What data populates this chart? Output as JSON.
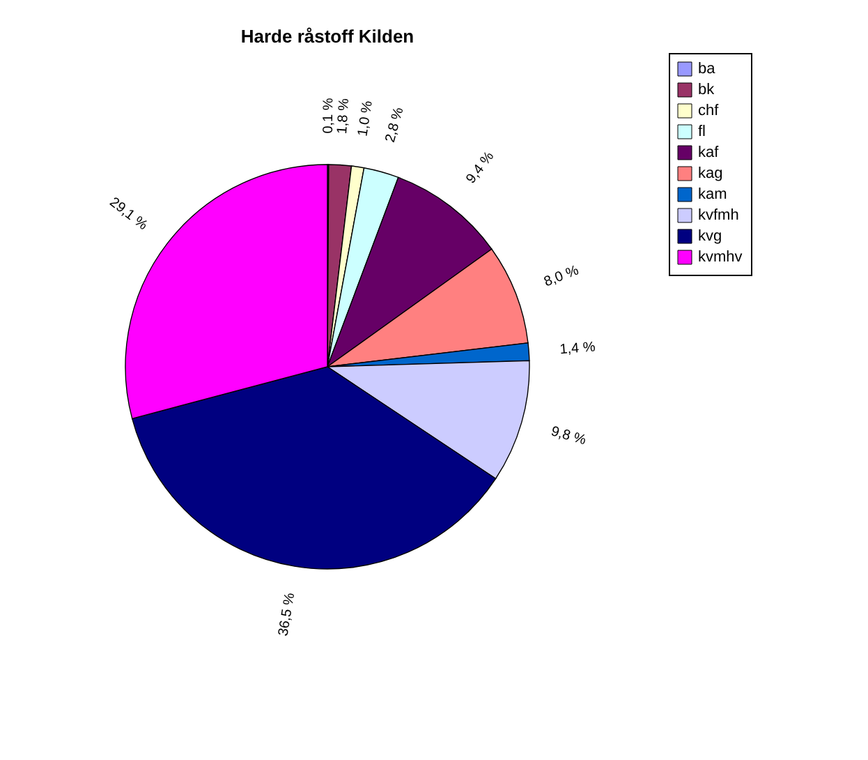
{
  "chart_data": {
    "type": "pie",
    "title": "Harde råstoff Kilden",
    "categories": [
      "ba",
      "bk",
      "chf",
      "fl",
      "kaf",
      "kag",
      "kam",
      "kvfmh",
      "kvg",
      "kvmhv"
    ],
    "values": [
      0.1,
      1.8,
      1.0,
      2.8,
      9.4,
      8.0,
      1.4,
      9.8,
      36.5,
      29.1
    ],
    "value_labels": [
      "0,1 %",
      "1,8 %",
      "1,0 %",
      "2,8 %",
      "9,4 %",
      "8,0 %",
      "1,4 %",
      "9,8 %",
      "36,5 %",
      "29,1 %"
    ],
    "colors": [
      "#9999ff",
      "#993366",
      "#ffffcc",
      "#ccffff",
      "#660066",
      "#ff8080",
      "#0066cc",
      "#ccccff",
      "#000080",
      "#ff00ff"
    ],
    "legend": "right"
  }
}
